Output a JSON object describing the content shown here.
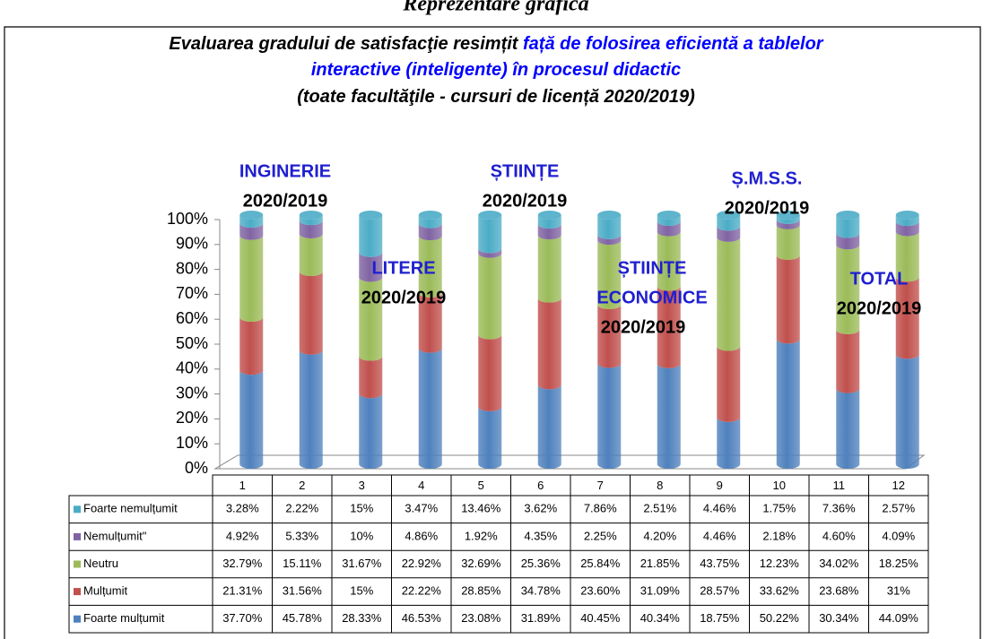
{
  "header": "Reprezentare grafică",
  "chart_data": {
    "type": "stacked_bar",
    "title_lines": [
      [
        {
          "text": "Evaluarea gradului de satisfacţie resimțit ",
          "color": "#000000"
        },
        {
          "text": "față de folosirea eficientă a tablelor",
          "color": "#0000ff"
        }
      ],
      [
        {
          "text": "interactive (inteligente) în procesul didactic",
          "color": "#0000ff"
        }
      ],
      [
        {
          "text": "(toate facultăţile - cursuri de licență 2020/2019)",
          "color": "#000000"
        }
      ]
    ],
    "categories": [
      "1",
      "2",
      "3",
      "4",
      "5",
      "6",
      "7",
      "8",
      "9",
      "10",
      "11",
      "12"
    ],
    "series": [
      {
        "name": "Foarte nemulțumit",
        "color": "#4bacc6",
        "values": [
          3.28,
          2.22,
          15,
          3.47,
          13.46,
          3.62,
          7.86,
          2.51,
          4.46,
          1.75,
          7.36,
          2.57
        ],
        "value_labels": [
          "3.28%",
          "2.22%",
          "15%",
          "3.47%",
          "13.46%",
          "3.62%",
          "7.86%",
          "2.51%",
          "4.46%",
          "1.75%",
          "7.36%",
          "2.57%"
        ]
      },
      {
        "name": "Nemulțumit\"",
        "color": "#8064a2",
        "values": [
          4.92,
          5.33,
          10,
          4.86,
          1.92,
          4.35,
          2.25,
          4.2,
          4.46,
          2.18,
          4.6,
          4.09
        ],
        "value_labels": [
          "4.92%",
          "5.33%",
          "10%",
          "4.86%",
          "1.92%",
          "4.35%",
          "2.25%",
          "4.20%",
          "4.46%",
          "2.18%",
          "4.60%",
          "4.09%"
        ]
      },
      {
        "name": "Neutru",
        "color": "#9bbb59",
        "values": [
          32.79,
          15.11,
          31.67,
          22.92,
          32.69,
          25.36,
          25.84,
          21.85,
          43.75,
          12.23,
          34.02,
          18.25
        ],
        "value_labels": [
          "32.79%",
          "15.11%",
          "31.67%",
          "22.92%",
          "32.69%",
          "25.36%",
          "25.84%",
          "21.85%",
          "43.75%",
          "12.23%",
          "34.02%",
          "18.25%"
        ]
      },
      {
        "name": "Mulțumit",
        "color": "#c0504d",
        "values": [
          21.31,
          31.56,
          15,
          22.22,
          28.85,
          34.78,
          23.6,
          31.09,
          28.57,
          33.62,
          23.68,
          31
        ],
        "value_labels": [
          "21.31%",
          "31.56%",
          "15%",
          "22.22%",
          "28.85%",
          "34.78%",
          "23.60%",
          "31.09%",
          "28.57%",
          "33.62%",
          "23.68%",
          "31%"
        ]
      },
      {
        "name": "Foarte mulțumit",
        "color": "#4f81bd",
        "values": [
          37.7,
          45.78,
          28.33,
          46.53,
          23.08,
          31.89,
          40.45,
          40.34,
          18.75,
          50.22,
          30.34,
          44.09
        ],
        "value_labels": [
          "37.70%",
          "45.78%",
          "28.33%",
          "46.53%",
          "23.08%",
          "31.89%",
          "40.45%",
          "40.34%",
          "18.75%",
          "50.22%",
          "30.34%",
          "44.09%"
        ]
      }
    ],
    "ylim": [
      0,
      100
    ],
    "yticks": [
      {
        "value": 0,
        "label": "0%"
      },
      {
        "value": 10,
        "label": "10%"
      },
      {
        "value": 20,
        "label": "20%"
      },
      {
        "value": 30,
        "label": "30%"
      },
      {
        "value": 40,
        "label": "40%"
      },
      {
        "value": 50,
        "label": "50%"
      },
      {
        "value": 60,
        "label": "60%"
      },
      {
        "value": 70,
        "label": "70%"
      },
      {
        "value": 80,
        "label": "80%"
      },
      {
        "value": 90,
        "label": "90%"
      },
      {
        "value": 100,
        "label": "100%"
      }
    ],
    "annotations": [
      {
        "name": [
          "INGINERIE"
        ],
        "period": "2020/2019"
      },
      {
        "name": [
          "LITERE"
        ],
        "period": "2020/2019"
      },
      {
        "name": [
          "ȘTIINȚE"
        ],
        "period": "2020/2019"
      },
      {
        "name": [
          "ȘTIINȚE",
          "ECONOMICE"
        ],
        "period": "2020/2019"
      },
      {
        "name": [
          "Ș.M.S.S."
        ],
        "period": "2020/2019"
      },
      {
        "name": [
          "TOTAL"
        ],
        "period": "2020/2019"
      }
    ]
  }
}
